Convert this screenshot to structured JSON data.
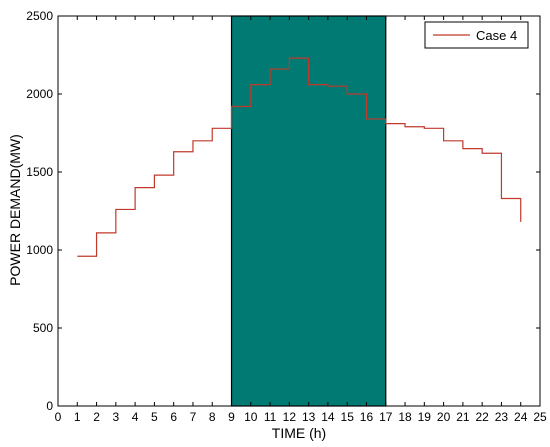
{
  "chart_data": {
    "type": "line",
    "step": true,
    "title": "",
    "xlabel": "TIME (h)",
    "ylabel": "POWER DEMAND(MW)",
    "xlim": [
      0,
      25
    ],
    "ylim": [
      0,
      2500
    ],
    "xticks": [
      0,
      1,
      2,
      3,
      4,
      5,
      6,
      7,
      8,
      9,
      10,
      11,
      12,
      13,
      14,
      15,
      16,
      17,
      18,
      19,
      20,
      21,
      22,
      23,
      24,
      25
    ],
    "yticks": [
      0,
      500,
      1000,
      1500,
      2000,
      2500
    ],
    "grid": false,
    "legend": {
      "position": "top-right"
    },
    "highlight_region": {
      "x_start": 9,
      "x_end": 17,
      "color": "#007a73"
    },
    "series": [
      {
        "name": "Case 4",
        "color": "#c0392b",
        "hours": [
          1,
          2,
          3,
          4,
          5,
          6,
          7,
          8,
          9,
          10,
          11,
          12,
          13,
          14,
          15,
          16,
          17,
          18,
          19,
          20,
          21,
          22,
          23,
          24
        ],
        "values": [
          960,
          1110,
          1260,
          1400,
          1480,
          1630,
          1700,
          1780,
          1920,
          2060,
          2160,
          2230,
          2060,
          2050,
          2000,
          1840,
          1810,
          1790,
          1780,
          1700,
          1650,
          1620,
          1330,
          1180
        ]
      }
    ]
  }
}
